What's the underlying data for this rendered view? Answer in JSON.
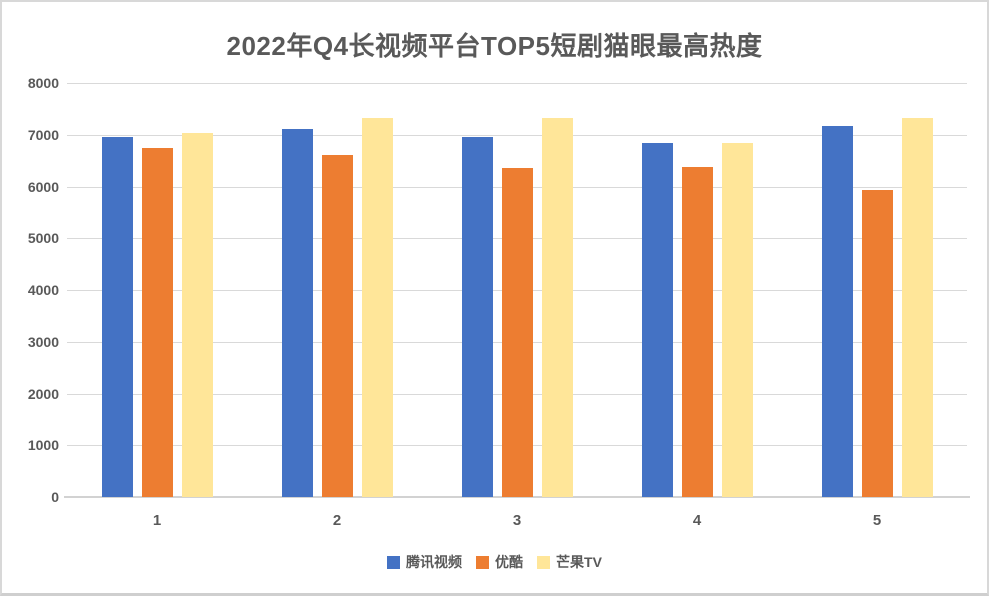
{
  "window": {
    "background": "#ffffff",
    "border_color": "#d8d8d8"
  },
  "chart_data": {
    "type": "bar",
    "title": "2022年Q4长视频平台TOP5短剧猫眼最高热度",
    "categories": [
      "1",
      "2",
      "3",
      "4",
      "5"
    ],
    "series": [
      {
        "name": "腾讯视频",
        "color": "#4472c4",
        "values": [
          6960,
          7110,
          6960,
          6850,
          7170
        ]
      },
      {
        "name": "优酷",
        "color": "#ed7d31",
        "values": [
          6740,
          6610,
          6350,
          6380,
          5930
        ]
      },
      {
        "name": "芒果TV",
        "color": "#ffe699",
        "values": [
          7030,
          7330,
          7330,
          6840,
          7330
        ]
      }
    ],
    "xlabel": "",
    "ylabel": "",
    "ylim": [
      0,
      8000
    ],
    "ytick_interval": 1000,
    "yticks": [
      "0",
      "1000",
      "2000",
      "3000",
      "4000",
      "5000",
      "6000",
      "7000",
      "8000"
    ],
    "grid": true,
    "legend_position": "bottom",
    "title_color": "#595959",
    "tick_color": "#595959",
    "gridline_color": "#d9d9d9",
    "axis_line_color": "#d2d2d2"
  }
}
